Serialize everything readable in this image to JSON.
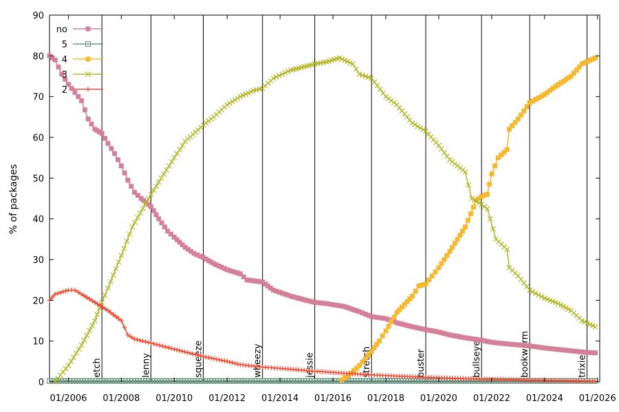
{
  "chart_data": {
    "type": "line",
    "title": "",
    "xlabel": "",
    "ylabel": "% of packages",
    "ylim": [
      0,
      90
    ],
    "yticks": [
      0,
      10,
      20,
      30,
      40,
      50,
      60,
      70,
      80,
      90
    ],
    "xlim": [
      "2005-04-15",
      "2026-02-01"
    ],
    "xticks": [
      {
        "date": "2006-01-01",
        "label": "01/2006"
      },
      {
        "date": "2008-01-01",
        "label": "01/2008"
      },
      {
        "date": "2010-01-01",
        "label": "01/2010"
      },
      {
        "date": "2012-01-01",
        "label": "01/2012"
      },
      {
        "date": "2014-01-01",
        "label": "01/2014"
      },
      {
        "date": "2016-01-01",
        "label": "01/2016"
      },
      {
        "date": "2018-01-01",
        "label": "01/2018"
      },
      {
        "date": "2020-01-01",
        "label": "01/2020"
      },
      {
        "date": "2022-01-01",
        "label": "01/2022"
      },
      {
        "date": "2024-01-01",
        "label": "01/2024"
      },
      {
        "date": "2026-01-01",
        "label": "01/2026"
      }
    ],
    "grid": false,
    "legend_position": "top-left",
    "releases": [
      {
        "name": "etch",
        "date": "2007-04-08"
      },
      {
        "name": "lenny",
        "date": "2009-02-14"
      },
      {
        "name": "squeeze",
        "date": "2011-02-06"
      },
      {
        "name": "wheezy",
        "date": "2013-05-04"
      },
      {
        "name": "jessie",
        "date": "2015-04-25"
      },
      {
        "name": "stretch",
        "date": "2017-06-17"
      },
      {
        "name": "buster",
        "date": "2019-07-06"
      },
      {
        "name": "bullseye",
        "date": "2021-08-14"
      },
      {
        "name": "bookworm",
        "date": "2023-06-10"
      },
      {
        "name": "trixie",
        "date": "2025-08-09"
      }
    ],
    "series": [
      {
        "name": "no",
        "color": "#d4809a",
        "marker": "filled-square",
        "points": [
          [
            "2005-04-15",
            80
          ],
          [
            "2005-07-01",
            79
          ],
          [
            "2005-10-01",
            75.5
          ],
          [
            "2006-01-01",
            73
          ],
          [
            "2006-04-01",
            71
          ],
          [
            "2006-07-01",
            69
          ],
          [
            "2006-10-01",
            64.5
          ],
          [
            "2007-01-01",
            62
          ],
          [
            "2007-04-08",
            61
          ],
          [
            "2007-07-01",
            58.5
          ],
          [
            "2007-10-01",
            56
          ],
          [
            "2008-01-01",
            53
          ],
          [
            "2008-04-01",
            49.5
          ],
          [
            "2008-07-01",
            46.5
          ],
          [
            "2008-10-01",
            45
          ],
          [
            "2009-02-14",
            43
          ],
          [
            "2009-06-01",
            40
          ],
          [
            "2009-10-01",
            37
          ],
          [
            "2010-01-01",
            35.5
          ],
          [
            "2010-06-01",
            33
          ],
          [
            "2010-10-01",
            31.5
          ],
          [
            "2011-02-06",
            30.5
          ],
          [
            "2011-07-01",
            29
          ],
          [
            "2012-01-01",
            27.5
          ],
          [
            "2012-07-01",
            26.5
          ],
          [
            "2012-10-01",
            25
          ],
          [
            "2013-05-04",
            24.5
          ],
          [
            "2013-10-01",
            22.5
          ],
          [
            "2014-06-01",
            21
          ],
          [
            "2015-01-01",
            20
          ],
          [
            "2015-04-25",
            19.5
          ],
          [
            "2015-10-01",
            19.2
          ],
          [
            "2016-06-01",
            18.5
          ],
          [
            "2017-01-01",
            17.2
          ],
          [
            "2017-06-17",
            16
          ],
          [
            "2018-01-01",
            15.5
          ],
          [
            "2018-06-01",
            14.5
          ],
          [
            "2019-01-01",
            13.5
          ],
          [
            "2019-07-06",
            12.8
          ],
          [
            "2020-01-01",
            12.2
          ],
          [
            "2020-06-01",
            11.5
          ],
          [
            "2021-01-01",
            10.8
          ],
          [
            "2021-08-14",
            10.2
          ],
          [
            "2022-01-01",
            9.7
          ],
          [
            "2022-06-01",
            9.4
          ],
          [
            "2023-06-10",
            8.8
          ],
          [
            "2024-01-01",
            8.3
          ],
          [
            "2024-06-01",
            8.0
          ],
          [
            "2025-01-01",
            7.6
          ],
          [
            "2025-08-09",
            7.2
          ],
          [
            "2025-12-01",
            7.1
          ]
        ]
      },
      {
        "name": "5",
        "color": "#6e9c8a",
        "marker": "open-square",
        "points": [
          [
            "2005-04-15",
            0.2
          ],
          [
            "2010-01-01",
            0.2
          ],
          [
            "2015-01-01",
            0.2
          ],
          [
            "2020-01-01",
            0.2
          ],
          [
            "2025-12-01",
            0.2
          ]
        ]
      },
      {
        "name": "4",
        "color": "#f5b82e",
        "marker": "filled-square",
        "points": [
          [
            "2016-05-01",
            0.5
          ],
          [
            "2016-08-01",
            1.5
          ],
          [
            "2017-01-01",
            4
          ],
          [
            "2017-06-17",
            7.5
          ],
          [
            "2017-10-01",
            10
          ],
          [
            "2018-01-01",
            12.5
          ],
          [
            "2018-06-01",
            17
          ],
          [
            "2019-01-01",
            21
          ],
          [
            "2019-04-01",
            23.5
          ],
          [
            "2019-07-06",
            24
          ],
          [
            "2019-10-01",
            26
          ],
          [
            "2020-01-01",
            28
          ],
          [
            "2020-06-01",
            32
          ],
          [
            "2021-01-01",
            38
          ],
          [
            "2021-06-01",
            44.5
          ],
          [
            "2021-08-14",
            45.5
          ],
          [
            "2021-11-01",
            46
          ],
          [
            "2022-01-01",
            51
          ],
          [
            "2022-04-01",
            55
          ],
          [
            "2022-08-01",
            57
          ],
          [
            "2022-09-01",
            62
          ],
          [
            "2023-01-01",
            64.5
          ],
          [
            "2023-06-10",
            68.5
          ],
          [
            "2024-01-01",
            70.5
          ],
          [
            "2024-06-01",
            72.5
          ],
          [
            "2025-01-01",
            75
          ],
          [
            "2025-06-01",
            78
          ],
          [
            "2025-12-01",
            79.5
          ]
        ]
      },
      {
        "name": "3",
        "color": "#b5b82c",
        "marker": "cross",
        "points": [
          [
            "2005-07-01",
            0
          ],
          [
            "2006-01-01",
            4
          ],
          [
            "2006-07-01",
            9
          ],
          [
            "2007-01-01",
            15
          ],
          [
            "2007-04-08",
            19.5
          ],
          [
            "2007-07-01",
            23
          ],
          [
            "2008-01-01",
            31
          ],
          [
            "2008-06-01",
            38
          ],
          [
            "2009-02-14",
            46
          ],
          [
            "2009-06-01",
            49
          ],
          [
            "2010-01-01",
            55
          ],
          [
            "2010-06-01",
            59
          ],
          [
            "2011-02-06",
            63
          ],
          [
            "2011-07-01",
            65
          ],
          [
            "2012-01-01",
            68
          ],
          [
            "2012-07-01",
            70
          ],
          [
            "2013-01-01",
            71.5
          ],
          [
            "2013-05-04",
            72
          ],
          [
            "2013-10-01",
            74.5
          ],
          [
            "2014-06-01",
            76.5
          ],
          [
            "2015-04-25",
            78
          ],
          [
            "2015-10-01",
            78.5
          ],
          [
            "2016-04-01",
            79.5
          ],
          [
            "2016-10-01",
            78
          ],
          [
            "2017-01-01",
            75.5
          ],
          [
            "2017-06-17",
            74.5
          ],
          [
            "2018-01-01",
            70
          ],
          [
            "2018-06-01",
            68
          ],
          [
            "2019-01-01",
            63.5
          ],
          [
            "2019-07-06",
            61.5
          ],
          [
            "2020-01-01",
            58
          ],
          [
            "2020-06-01",
            54.5
          ],
          [
            "2021-01-01",
            51.5
          ],
          [
            "2021-04-01",
            45
          ],
          [
            "2021-08-14",
            43.5
          ],
          [
            "2021-11-01",
            42.5
          ],
          [
            "2022-03-01",
            35
          ],
          [
            "2022-08-01",
            32.5
          ],
          [
            "2022-09-01",
            28
          ],
          [
            "2023-01-01",
            26
          ],
          [
            "2023-06-10",
            22.5
          ],
          [
            "2024-01-01",
            20.5
          ],
          [
            "2024-06-01",
            19.5
          ],
          [
            "2025-01-01",
            17.5
          ],
          [
            "2025-06-01",
            15
          ],
          [
            "2025-12-01",
            13.5
          ]
        ]
      },
      {
        "name": "2",
        "color": "#f04a32",
        "marker": "plus",
        "points": [
          [
            "2005-04-15",
            20
          ],
          [
            "2005-07-01",
            21.5
          ],
          [
            "2006-01-01",
            22.5
          ],
          [
            "2006-04-01",
            22.5
          ],
          [
            "2006-07-01",
            21.5
          ],
          [
            "2007-01-01",
            19.5
          ],
          [
            "2007-07-01",
            17.5
          ],
          [
            "2008-01-01",
            15
          ],
          [
            "2008-04-01",
            11.5
          ],
          [
            "2008-07-01",
            10.5
          ],
          [
            "2009-02-14",
            9.5
          ],
          [
            "2010-01-01",
            8
          ],
          [
            "2011-02-06",
            6.2
          ],
          [
            "2012-01-01",
            5
          ],
          [
            "2012-07-01",
            4.2
          ],
          [
            "2013-05-04",
            3.6
          ],
          [
            "2014-01-01",
            3.3
          ],
          [
            "2015-04-25",
            2.6
          ],
          [
            "2016-06-01",
            2.1
          ],
          [
            "2017-06-17",
            1.7
          ],
          [
            "2018-06-01",
            1.4
          ],
          [
            "2019-07-06",
            1.1
          ],
          [
            "2020-06-01",
            0.9
          ],
          [
            "2021-08-14",
            0.7
          ],
          [
            "2023-06-10",
            0.4
          ],
          [
            "2025-08-09",
            0.2
          ],
          [
            "2025-12-01",
            0.1
          ]
        ]
      }
    ]
  }
}
